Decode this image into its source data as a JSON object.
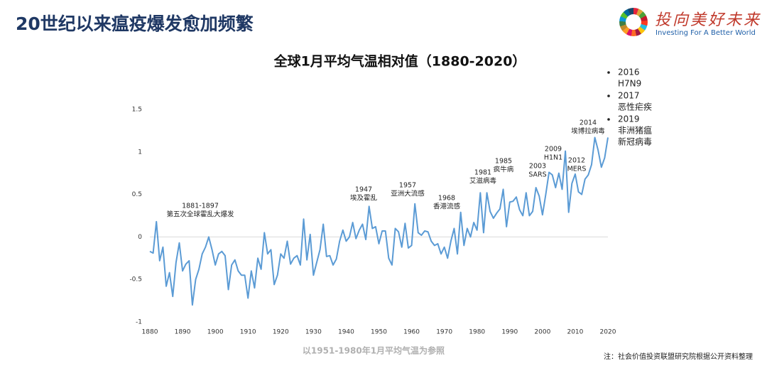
{
  "header": {
    "title": "20世纪以来瘟疫爆发愈加频繁"
  },
  "logo": {
    "slogan": "投向美好未来",
    "tagline": "Investing For A Better World"
  },
  "chart_data": {
    "type": "line",
    "title": "全球1月平均气温相对值（1880-2020）",
    "subtitle": "以1951-1980年1月平均气温为参照",
    "color": "#5b9bd5",
    "x": [
      1880,
      1881,
      1882,
      1883,
      1884,
      1885,
      1886,
      1887,
      1888,
      1889,
      1890,
      1891,
      1892,
      1893,
      1894,
      1895,
      1896,
      1897,
      1898,
      1899,
      1900,
      1901,
      1902,
      1903,
      1904,
      1905,
      1906,
      1907,
      1908,
      1909,
      1910,
      1911,
      1912,
      1913,
      1914,
      1915,
      1916,
      1917,
      1918,
      1919,
      1920,
      1921,
      1922,
      1923,
      1924,
      1925,
      1926,
      1927,
      1928,
      1929,
      1930,
      1931,
      1932,
      1933,
      1934,
      1935,
      1936,
      1937,
      1938,
      1939,
      1940,
      1941,
      1942,
      1943,
      1944,
      1945,
      1946,
      1947,
      1948,
      1949,
      1950,
      1951,
      1952,
      1953,
      1954,
      1955,
      1956,
      1957,
      1958,
      1959,
      1960,
      1961,
      1962,
      1963,
      1964,
      1965,
      1966,
      1967,
      1968,
      1969,
      1970,
      1971,
      1972,
      1973,
      1974,
      1975,
      1976,
      1977,
      1978,
      1979,
      1980,
      1981,
      1982,
      1983,
      1984,
      1985,
      1986,
      1987,
      1988,
      1989,
      1990,
      1991,
      1992,
      1993,
      1994,
      1995,
      1996,
      1997,
      1998,
      1999,
      2000,
      2001,
      2002,
      2003,
      2004,
      2005,
      2006,
      2007,
      2008,
      2009,
      2010,
      2011,
      2012,
      2013,
      2014,
      2015,
      2016,
      2017,
      2018,
      2019,
      2020
    ],
    "values": [
      -0.17,
      -0.19,
      0.18,
      -0.28,
      -0.12,
      -0.58,
      -0.42,
      -0.7,
      -0.3,
      -0.07,
      -0.4,
      -0.32,
      -0.28,
      -0.8,
      -0.5,
      -0.38,
      -0.2,
      -0.12,
      0.0,
      -0.15,
      -0.33,
      -0.2,
      -0.17,
      -0.22,
      -0.62,
      -0.33,
      -0.27,
      -0.4,
      -0.45,
      -0.45,
      -0.72,
      -0.4,
      -0.6,
      -0.25,
      -0.38,
      0.05,
      -0.2,
      -0.15,
      -0.56,
      -0.45,
      -0.2,
      -0.25,
      -0.05,
      -0.32,
      -0.25,
      -0.22,
      -0.33,
      0.21,
      -0.27,
      0.03,
      -0.45,
      -0.3,
      -0.15,
      0.15,
      -0.23,
      -0.22,
      -0.33,
      -0.26,
      -0.05,
      0.08,
      -0.05,
      0.0,
      0.17,
      -0.02,
      0.08,
      0.15,
      -0.03,
      0.36,
      0.1,
      0.12,
      -0.08,
      0.07,
      0.07,
      -0.25,
      -0.33,
      0.1,
      0.06,
      -0.12,
      0.16,
      -0.13,
      -0.1,
      0.39,
      0.05,
      0.02,
      0.07,
      0.06,
      -0.05,
      -0.1,
      -0.08,
      -0.2,
      -0.12,
      -0.25,
      -0.05,
      0.1,
      -0.2,
      0.29,
      -0.1,
      0.1,
      0.0,
      0.17,
      0.08,
      0.52,
      0.05,
      0.52,
      0.3,
      0.22,
      0.28,
      0.33,
      0.56,
      0.12,
      0.41,
      0.42,
      0.47,
      0.32,
      0.25,
      0.52,
      0.25,
      0.3,
      0.58,
      0.48,
      0.26,
      0.5,
      0.76,
      0.73,
      0.58,
      0.75,
      0.56,
      1.01,
      0.29,
      0.63,
      0.74,
      0.53,
      0.5,
      0.68,
      0.73,
      0.85,
      1.17,
      1.02,
      0.82,
      0.93,
      1.17
    ],
    "xlim": [
      1880,
      2020
    ],
    "xticks": [
      1880,
      1890,
      1900,
      1910,
      1920,
      1930,
      1940,
      1950,
      1960,
      1970,
      1980,
      1990,
      2000,
      2010,
      2020
    ],
    "ylim": [
      -1,
      1.5
    ],
    "yticks": [
      -1,
      -0.5,
      0,
      0.5,
      1,
      1.5
    ],
    "annotations": [
      {
        "year": "1881-1897",
        "text": "第五次全球霍乱大爆发"
      },
      {
        "year": "1947",
        "text": "埃及霍乱"
      },
      {
        "year": "1957",
        "text": "亚洲大流感"
      },
      {
        "year": "1968",
        "text": "香港流感"
      },
      {
        "year": "1981",
        "text": "艾滋病毒"
      },
      {
        "year": "1985",
        "text": "疯牛病"
      },
      {
        "year": "2003",
        "text": "SARS"
      },
      {
        "year": "2009",
        "text": "H1N1"
      },
      {
        "year": "2012",
        "text": "MERS"
      },
      {
        "year": "2014",
        "text": "埃博拉病毒"
      }
    ],
    "events": [
      {
        "year": "2016",
        "names": [
          "H7N9"
        ]
      },
      {
        "year": "2017",
        "names": [
          "恶性疟疾"
        ]
      },
      {
        "year": "2019",
        "names": [
          "非洲猪瘟",
          "新冠病毒"
        ]
      }
    ]
  },
  "note": "注：社会价值投资联盟研究院根据公开资料整理"
}
